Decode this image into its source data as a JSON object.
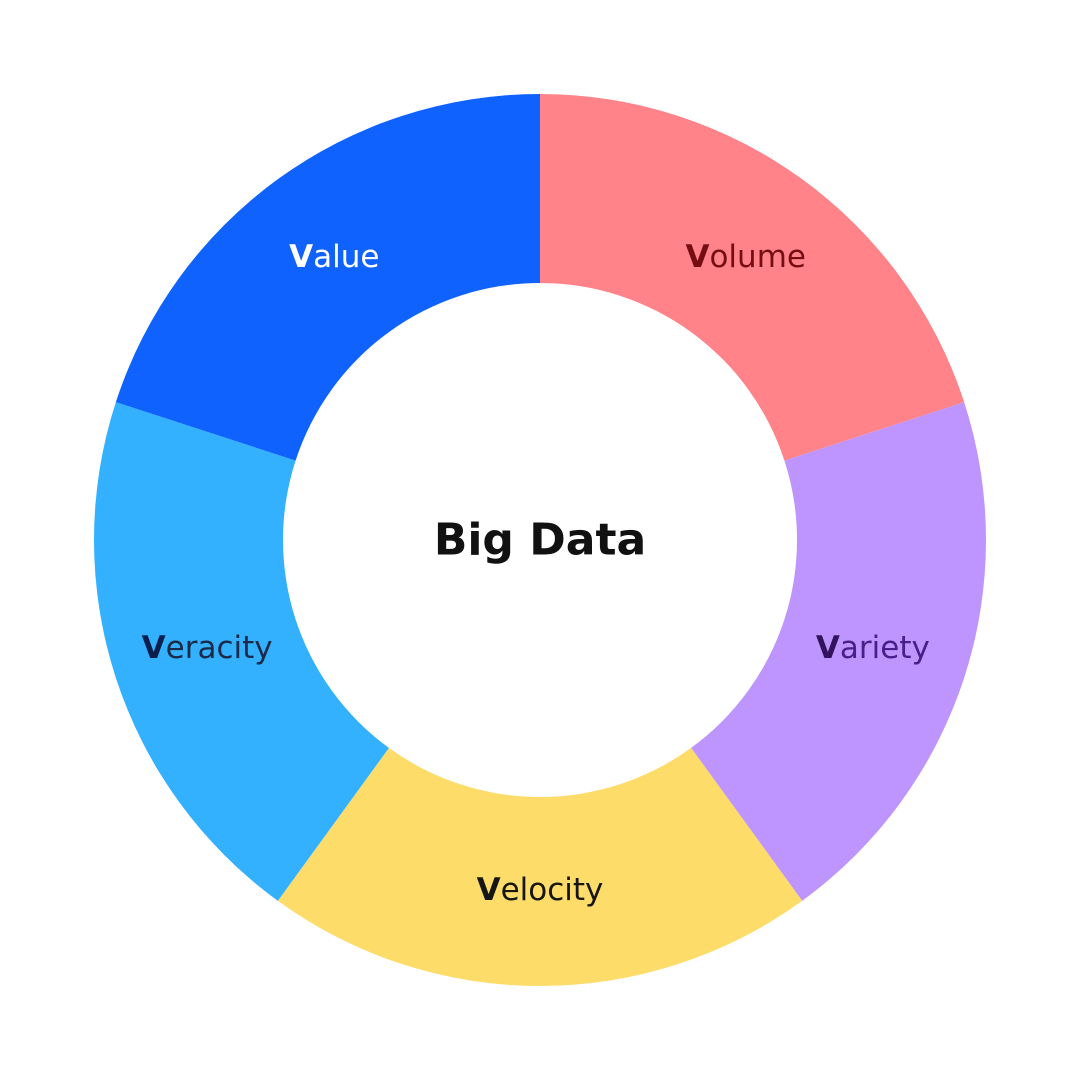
{
  "center": {
    "title": "Big Data",
    "title_color": "#111111"
  },
  "segments": [
    {
      "id": "volume",
      "initial": "V",
      "rest": "olume",
      "fill": "#FF8389",
      "initial_color": "#750E13",
      "text_color": "#750E13"
    },
    {
      "id": "variety",
      "initial": "V",
      "rest": "ariety",
      "fill": "#BE95FF",
      "initial_color": "#31135E",
      "text_color": "#491D8B"
    },
    {
      "id": "velocity",
      "initial": "V",
      "rest": "elocity",
      "fill": "#FDDC69",
      "initial_color": "#161616",
      "text_color": "#161616"
    },
    {
      "id": "veracity",
      "initial": "V",
      "rest": "eracity",
      "fill": "#33B1FF",
      "initial_color": "#0B1F4F",
      "text_color": "#1C2A4A"
    },
    {
      "id": "value",
      "initial": "V",
      "rest": "alue",
      "fill": "#0F62FE",
      "initial_color": "#FFFFFF",
      "text_color": "#FFFFFF"
    }
  ]
}
